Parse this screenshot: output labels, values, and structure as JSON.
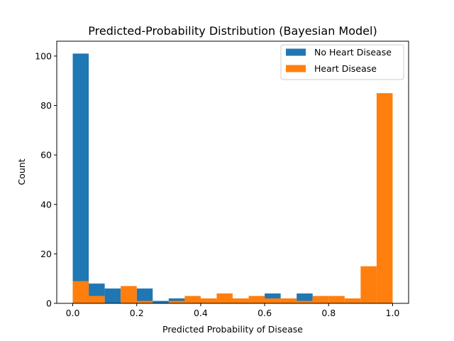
{
  "chart_data": {
    "type": "bar",
    "title": "Predicted-Probability Distribution (Bayesian Model)",
    "xlabel": "Predicted Probability of Disease",
    "ylabel": "Count",
    "xlim": [
      -0.05,
      1.05
    ],
    "ylim": [
      0,
      106
    ],
    "xticks": [
      {
        "value": 0.0,
        "label": "0.0"
      },
      {
        "value": 0.2,
        "label": "0.2"
      },
      {
        "value": 0.4,
        "label": "0.4"
      },
      {
        "value": 0.6,
        "label": "0.6"
      },
      {
        "value": 0.8,
        "label": "0.8"
      },
      {
        "value": 1.0,
        "label": "1.0"
      }
    ],
    "yticks": [
      {
        "value": 0,
        "label": "0"
      },
      {
        "value": 20,
        "label": "20"
      },
      {
        "value": 40,
        "label": "40"
      },
      {
        "value": 60,
        "label": "60"
      },
      {
        "value": 80,
        "label": "80"
      },
      {
        "value": 100,
        "label": "100"
      }
    ],
    "bin_edges": [
      0.0,
      0.05,
      0.1,
      0.15,
      0.2,
      0.25,
      0.3,
      0.35,
      0.4,
      0.45,
      0.5,
      0.55,
      0.6,
      0.65,
      0.7,
      0.75,
      0.8,
      0.85,
      0.9,
      0.95,
      1.0
    ],
    "legend_position": "top-right",
    "series": [
      {
        "name": "No Heart Disease",
        "color": "#1f77b4",
        "values": [
          101,
          8,
          6,
          1,
          6,
          1,
          2,
          2,
          1,
          1,
          0,
          0,
          4,
          0,
          4,
          0,
          0,
          0,
          0,
          0
        ]
      },
      {
        "name": "Heart Disease",
        "color": "#ff7f0e",
        "values": [
          9,
          3,
          0,
          7,
          1,
          0,
          1,
          3,
          2,
          4,
          2,
          3,
          2,
          2,
          1,
          3,
          3,
          2,
          15,
          85
        ]
      }
    ]
  }
}
